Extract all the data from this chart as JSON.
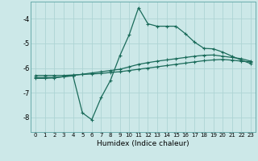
{
  "xlabel": "Humidex (Indice chaleur)",
  "ylabel": "",
  "bg_color": "#cce8e8",
  "line_color": "#1a6b5a",
  "grid_color": "#aed4d4",
  "xlim": [
    -0.5,
    23.5
  ],
  "ylim": [
    -8.6,
    -3.3
  ],
  "xticks": [
    0,
    1,
    2,
    3,
    4,
    5,
    6,
    7,
    8,
    9,
    10,
    11,
    12,
    13,
    14,
    15,
    16,
    17,
    18,
    19,
    20,
    21,
    22,
    23
  ],
  "yticks": [
    -8,
    -7,
    -6,
    -5,
    -4
  ],
  "curve_flat1_x": [
    0,
    1,
    2,
    3,
    4,
    5,
    6,
    7,
    8,
    9,
    10,
    11,
    12,
    13,
    14,
    15,
    16,
    17,
    18,
    19,
    20,
    21,
    22,
    23
  ],
  "curve_flat1_y": [
    -6.3,
    -6.3,
    -6.3,
    -6.3,
    -6.28,
    -6.26,
    -6.24,
    -6.22,
    -6.18,
    -6.15,
    -6.1,
    -6.05,
    -6.0,
    -5.95,
    -5.9,
    -5.85,
    -5.8,
    -5.75,
    -5.7,
    -5.67,
    -5.65,
    -5.68,
    -5.72,
    -5.75
  ],
  "curve_flat2_x": [
    0,
    1,
    2,
    3,
    4,
    5,
    6,
    7,
    8,
    9,
    10,
    11,
    12,
    13,
    14,
    15,
    16,
    17,
    18,
    19,
    20,
    21,
    22,
    23
  ],
  "curve_flat2_y": [
    -6.38,
    -6.38,
    -6.38,
    -6.35,
    -6.3,
    -6.25,
    -6.2,
    -6.15,
    -6.1,
    -6.05,
    -5.95,
    -5.85,
    -5.78,
    -5.72,
    -5.67,
    -5.62,
    -5.57,
    -5.52,
    -5.48,
    -5.47,
    -5.52,
    -5.57,
    -5.62,
    -5.72
  ],
  "curve_main_x": [
    0,
    1,
    2,
    3,
    4,
    4,
    5,
    6,
    7,
    8,
    9,
    10,
    11,
    12,
    13,
    14,
    15,
    16,
    17,
    18,
    19,
    20,
    21,
    22,
    23
  ],
  "curve_main_y": [
    -6.42,
    -6.42,
    -6.4,
    -6.35,
    -6.32,
    -6.32,
    -7.82,
    -8.1,
    -7.2,
    -6.5,
    -5.5,
    -4.65,
    -3.55,
    -4.2,
    -4.3,
    -4.3,
    -4.3,
    -4.6,
    -4.95,
    -5.2,
    -5.22,
    -5.35,
    -5.52,
    -5.68,
    -5.82
  ],
  "marker": "+",
  "markersize": 3,
  "linewidth": 0.9
}
